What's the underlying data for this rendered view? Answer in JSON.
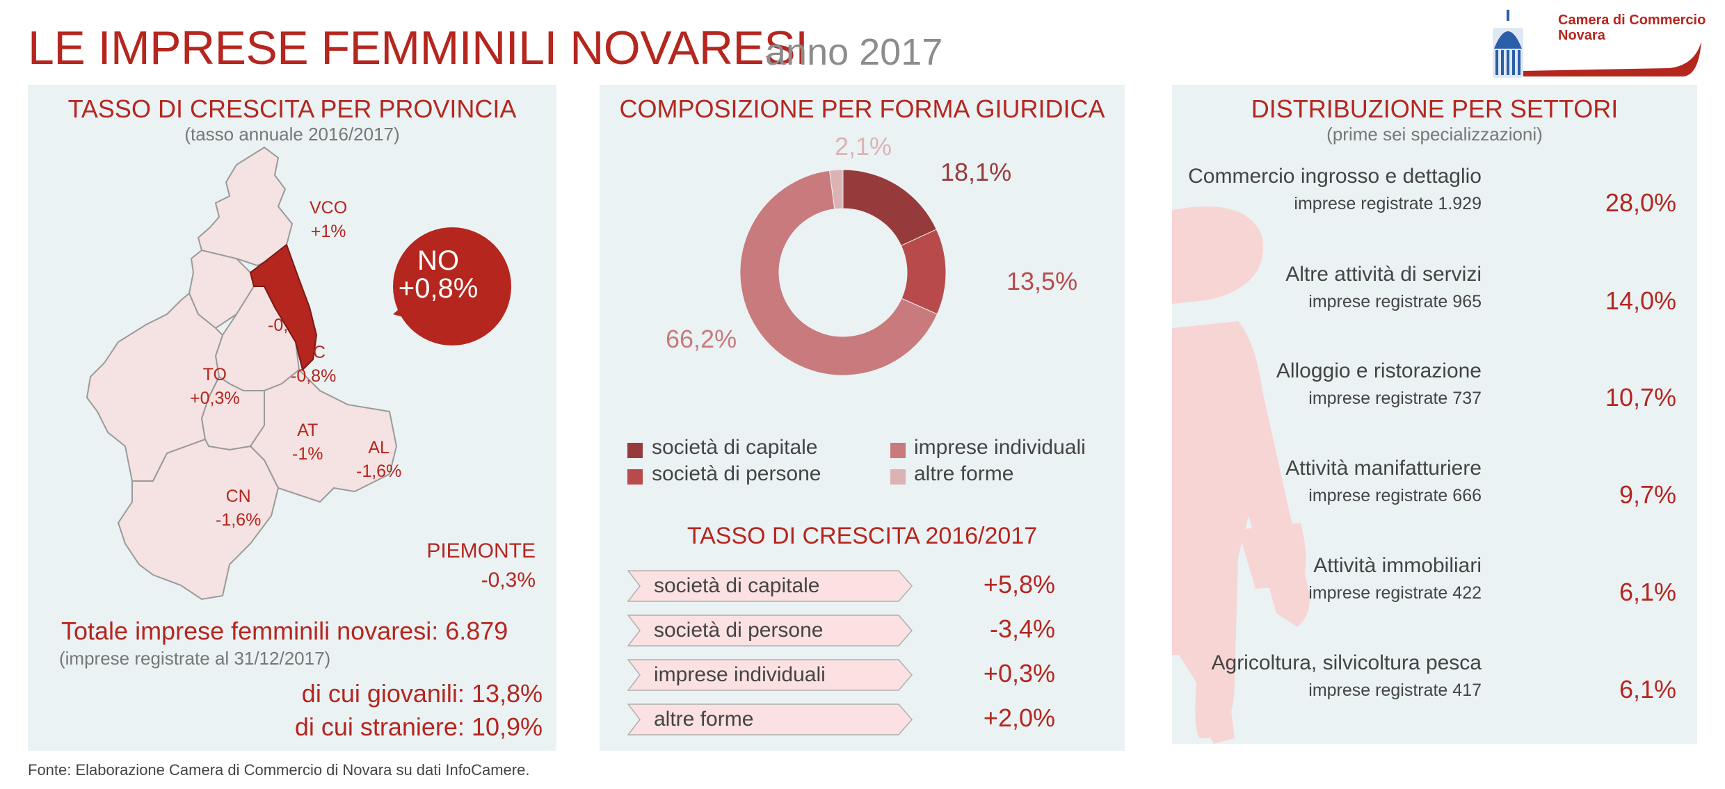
{
  "header": {
    "title": "LE IMPRESE FEMMINILI NOVARESI",
    "subtitle": "anno 2017",
    "logo_text_line1": "Camera di Commercio",
    "logo_text_line2": "Novara"
  },
  "colors": {
    "accent": "#b5261e",
    "panel_bg": "#eaf2f4",
    "map_fill": "#f5e2e2",
    "novara_fill": "#b5261e",
    "donut_capitale": "#963a3c",
    "donut_persone": "#b94a4c",
    "donut_individuali": "#c97a7c",
    "donut_altre": "#dcb3b5",
    "arrow_fill": "#fbe1e1"
  },
  "left_panel": {
    "title": "TASSO DI CRESCITA PER PROVINCIA",
    "subtitle": "(tasso annuale 2016/2017)",
    "provinces": [
      {
        "code": "VCO",
        "value": "+1%"
      },
      {
        "code": "BI",
        "value": "-0,7%"
      },
      {
        "code": "VC",
        "value": "-0,8%"
      },
      {
        "code": "TO",
        "value": "+0,3%"
      },
      {
        "code": "AT",
        "value": "-1%"
      },
      {
        "code": "AL",
        "value": "-1,6%"
      },
      {
        "code": "CN",
        "value": "-1,6%"
      }
    ],
    "highlight": {
      "code": "NO",
      "value": "+0,8%"
    },
    "region": {
      "name": "PIEMONTE",
      "value": "-0,3%"
    },
    "total_label": "Totale imprese femminili novaresi: 6.879",
    "total_note": "(imprese registrate al 31/12/2017)",
    "young_label": "di cui giovanili: 13,8%",
    "foreign_label": "di cui straniere: 10,9%"
  },
  "mid_panel": {
    "title": "COMPOSIZIONE PER FORMA GIURIDICA",
    "donut_labels": {
      "capitale": "18,1%",
      "persone": "13,5%",
      "individuali": "66,2%",
      "altre": "2,1%"
    },
    "legend": [
      {
        "label": "società di capitale",
        "color": "#963a3c"
      },
      {
        "label": "società di persone",
        "color": "#b94a4c"
      },
      {
        "label": "imprese individuali",
        "color": "#c97a7c"
      },
      {
        "label": "altre forme",
        "color": "#dcb3b5"
      }
    ],
    "growth_title": "TASSO DI CRESCITA 2016/2017",
    "growth": [
      {
        "label": "società di capitale",
        "value": "+5,8%"
      },
      {
        "label": "società di persone",
        "value": "-3,4%"
      },
      {
        "label": "imprese individuali",
        "value": "+0,3%"
      },
      {
        "label": "altre forme",
        "value": "+2,0%"
      }
    ]
  },
  "chart_data": {
    "type": "pie",
    "categories": [
      "società di capitale",
      "società di persone",
      "imprese individuali",
      "altre forme"
    ],
    "values": [
      18.1,
      13.5,
      66.2,
      2.1
    ],
    "title": "COMPOSIZIONE PER FORMA GIURIDICA",
    "legend": "bottom"
  },
  "right_panel": {
    "title": "DISTRIBUZIONE PER SETTORI",
    "subtitle": "(prime sei specializzazioni)",
    "sectors": [
      {
        "name": "Commercio ingrosso e dettaglio",
        "count": "imprese registrate 1.929",
        "pct": "28,0%"
      },
      {
        "name": "Altre attività di servizi",
        "count": "imprese registrate 965",
        "pct": "14,0%"
      },
      {
        "name": "Alloggio e ristorazione",
        "count": "imprese registrate 737",
        "pct": "10,7%"
      },
      {
        "name": "Attività manifatturiere",
        "count": "imprese registrate 666",
        "pct": "9,7%"
      },
      {
        "name": "Attività immobiliari",
        "count": "imprese registrate 422",
        "pct": "6,1%"
      },
      {
        "name": "Agricoltura, silvicoltura pesca",
        "count": "imprese registrate 417",
        "pct": "6,1%"
      }
    ]
  },
  "footer": {
    "source": "Fonte: Elaborazione Camera di Commercio di Novara su dati InfoCamere."
  }
}
